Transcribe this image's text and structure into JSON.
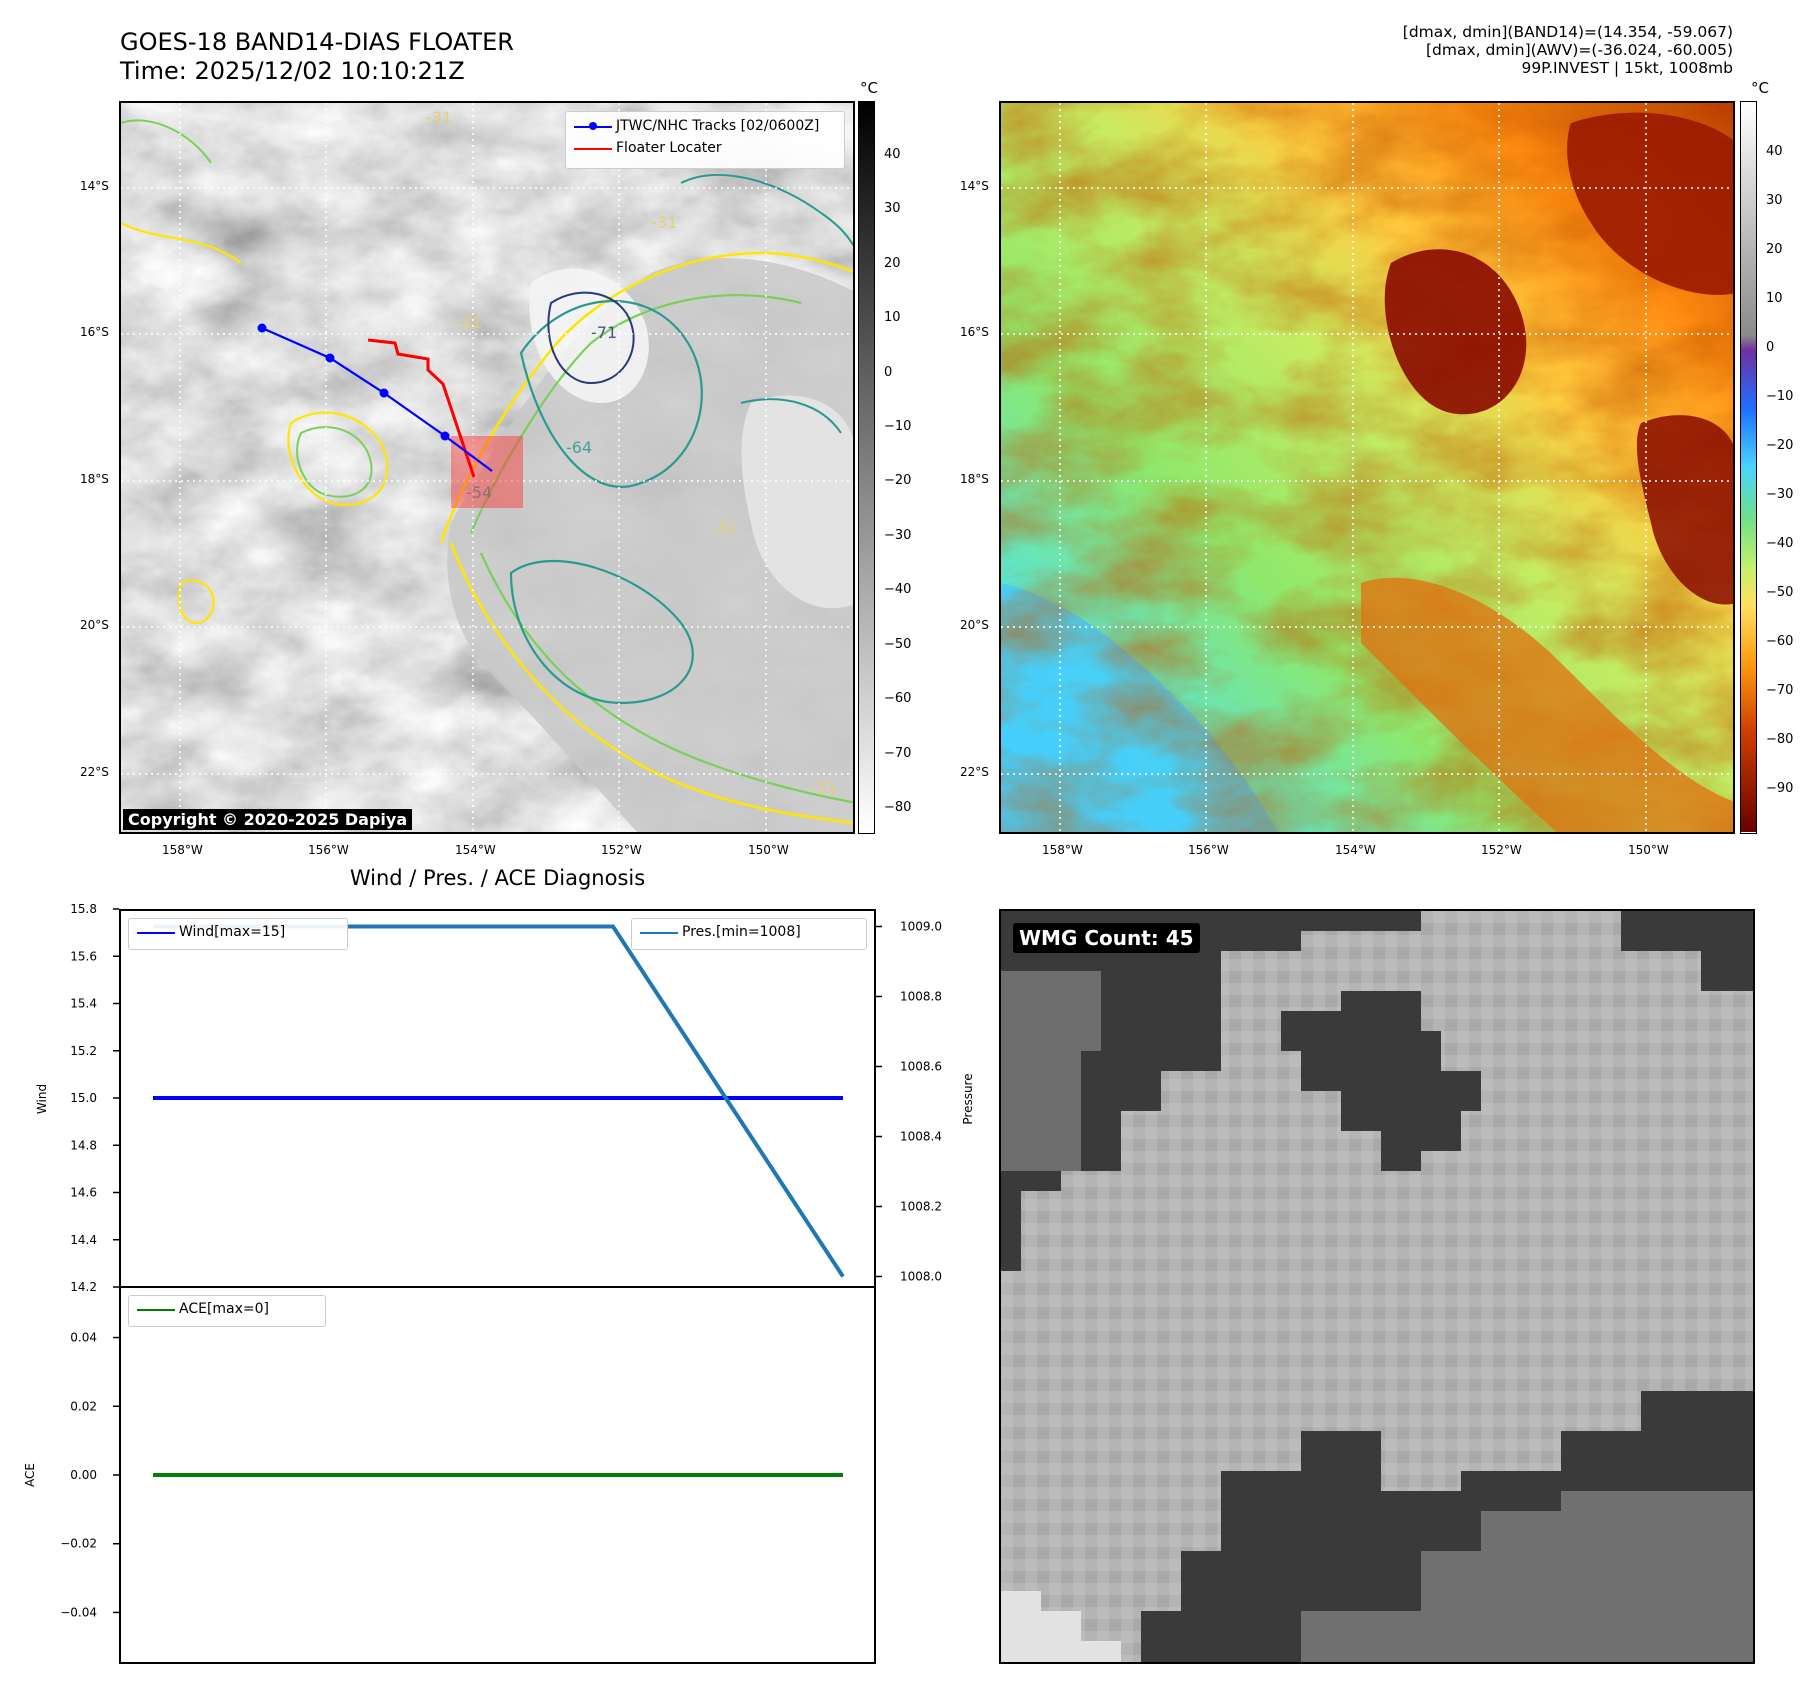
{
  "header": {
    "title": "GOES-18 BAND14-DIAS FLOATER",
    "time": "Time: 2025/12/02 10:10:21Z",
    "info_lines": [
      "[dmax, dmin](BAND14)=(14.354, -59.067)",
      "[dmax, dmin](AWV)=(-36.024, -60.005)",
      "99P.INVEST | 15kt, 1008mb"
    ]
  },
  "map": {
    "lat_ticks": [
      "14°S",
      "16°S",
      "18°S",
      "20°S",
      "22°S"
    ],
    "lon_ticks": [
      "158°W",
      "156°W",
      "154°W",
      "152°W",
      "150°W"
    ],
    "legend": {
      "track": "JTWC/NHC Tracks [02/0600Z]",
      "floater": "Floater Locater"
    },
    "copyright": "Copyright © 2020-2025 Dapiya",
    "contour_labels": [
      "-31",
      "-31",
      "-31",
      "-54",
      "-64",
      "-71",
      "-31",
      "-31"
    ]
  },
  "colorbar_ir": {
    "unit": "°C",
    "ticks": [
      "40",
      "30",
      "20",
      "10",
      "0",
      "−10",
      "−20",
      "−30",
      "−40",
      "−50",
      "−60",
      "−70",
      "−80"
    ]
  },
  "colorbar_enh": {
    "unit": "°C",
    "ticks": [
      "40",
      "30",
      "20",
      "10",
      "0",
      "−10",
      "−20",
      "−30",
      "−40",
      "−50",
      "−60",
      "−70",
      "−80",
      "−90"
    ]
  },
  "diagnosis": {
    "title": "Wind / Pres. / ACE Diagnosis",
    "wind_axis_label": "Wind",
    "pressure_axis_label": "Pressure",
    "ace_axis_label": "ACE",
    "wind_ticks": [
      "15.8",
      "15.6",
      "15.4",
      "15.2",
      "15.0",
      "14.8",
      "14.6",
      "14.4",
      "14.2"
    ],
    "pressure_ticks": [
      "1009.0",
      "1008.8",
      "1008.6",
      "1008.4",
      "1008.2",
      "1008.0"
    ],
    "ace_ticks": [
      "0.04",
      "0.02",
      "0.00",
      "−0.02",
      "−0.04"
    ],
    "wind_legend": "Wind[max=15]",
    "pressure_legend": "Pres.[min=1008]",
    "ace_legend": "ACE[max=0]"
  },
  "wmg": {
    "badge": "WMG Count: 45"
  },
  "chart_data": [
    {
      "type": "line",
      "title": "Wind / Pres. / ACE Diagnosis",
      "ylabel": "Wind",
      "ylim": [
        14.2,
        15.8
      ],
      "y2label": "Pressure",
      "y2lim": [
        1007.97,
        1009.05
      ],
      "series": [
        {
          "name": "Wind[max=15]",
          "axis": "left",
          "color": "#0000ff",
          "x": [
            0,
            1,
            2,
            3
          ],
          "values": [
            15,
            15,
            15,
            15
          ]
        },
        {
          "name": "Pres.[min=1008]",
          "axis": "right",
          "color": "#1f77b4",
          "x": [
            0,
            1,
            2,
            3
          ],
          "values": [
            1009,
            1009,
            1009,
            1008
          ]
        }
      ]
    },
    {
      "type": "line",
      "ylabel": "ACE",
      "ylim": [
        -0.055,
        0.055
      ],
      "series": [
        {
          "name": "ACE[max=0]",
          "color": "#008000",
          "x": [
            0,
            1,
            2,
            3
          ],
          "values": [
            0,
            0,
            0,
            0
          ]
        }
      ]
    }
  ],
  "colors": {
    "track": "#0000ff",
    "floater": "#ff0000",
    "wind": "#0000ff",
    "pressure": "#1f77b4",
    "ace": "#008000"
  }
}
